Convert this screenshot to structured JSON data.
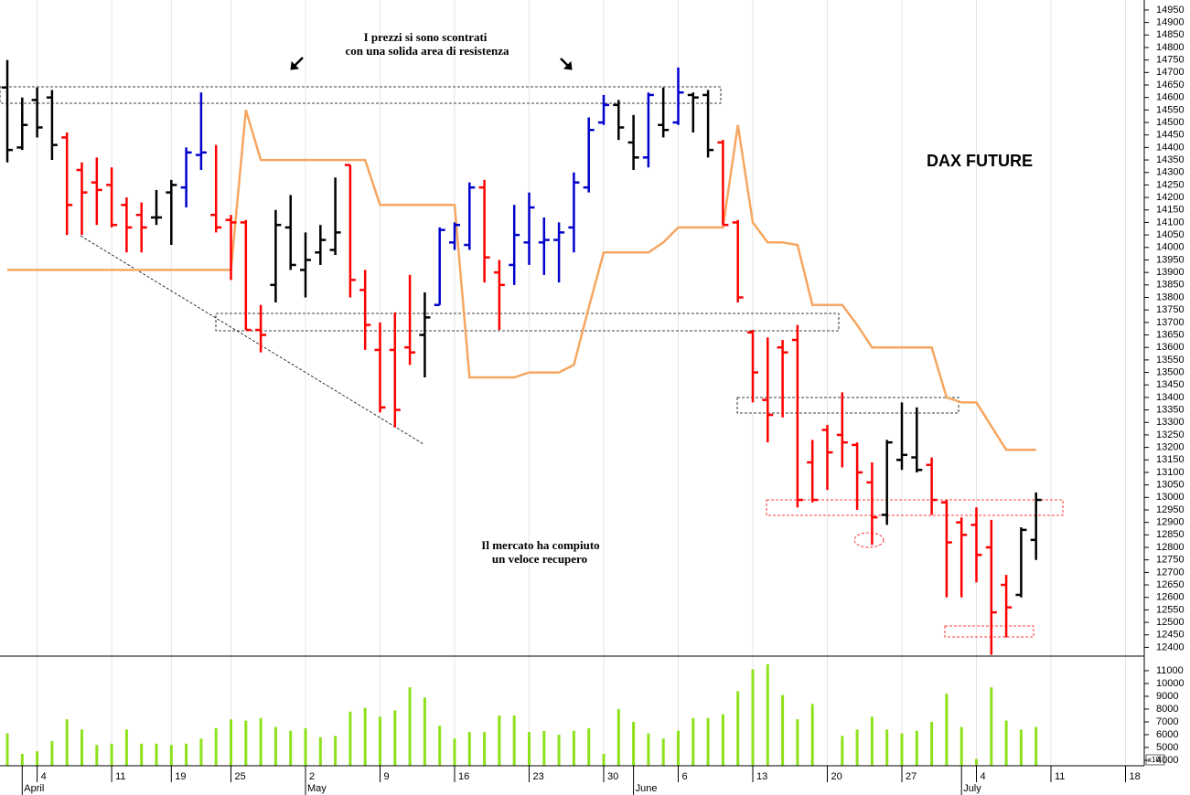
{
  "chart_data": {
    "type": "ohlc",
    "title": "DAX FUTURE",
    "annotations": [
      [
        "I prezzi si sono scontrati",
        "con una solida area di resistenza"
      ],
      [
        "Il mercato ha compiuto",
        "un veloce recupero"
      ]
    ],
    "categories": [
      null,
      null,
      "4",
      null,
      null,
      null,
      null,
      "11",
      null,
      null,
      null,
      "19",
      null,
      null,
      null,
      "25",
      null,
      null,
      null,
      null,
      "2",
      null,
      null,
      null,
      null,
      "9",
      null,
      null,
      null,
      null,
      "16",
      null,
      null,
      null,
      null,
      "23",
      null,
      null,
      null,
      null,
      "30",
      null,
      null,
      null,
      null,
      "6",
      null,
      null,
      null,
      null,
      "13",
      null,
      null,
      null,
      null,
      "20",
      null,
      null,
      null,
      null,
      "27",
      null,
      null,
      null,
      null,
      "4",
      null,
      null,
      null,
      null,
      "11",
      null,
      null,
      null,
      null,
      "18"
    ],
    "months": [
      null,
      "April",
      null,
      null,
      null,
      null,
      null,
      null,
      null,
      null,
      null,
      null,
      null,
      null,
      null,
      null,
      null,
      null,
      null,
      null,
      "May",
      null,
      null,
      null,
      null,
      null,
      null,
      null,
      null,
      null,
      null,
      null,
      null,
      null,
      null,
      null,
      null,
      null,
      null,
      null,
      null,
      null,
      "June",
      null,
      null,
      null,
      null,
      null,
      null,
      null,
      null,
      null,
      null,
      null,
      null,
      null,
      null,
      null,
      null,
      null,
      null,
      null,
      null,
      null,
      "July",
      null,
      null,
      null,
      null,
      null,
      null,
      null,
      null,
      null,
      null,
      null
    ],
    "open": [
      14640,
      14400,
      14590,
      14600,
      14440,
      14310,
      14260,
      14250,
      14170,
      14130,
      14120,
      14220,
      14240,
      14370,
      14130,
      14110,
      14100,
      13670,
      13850,
      14080,
      13910,
      13980,
      13990,
      14330,
      13830,
      13590,
      13590,
      13600,
      13650,
      13770,
      14020,
      14010,
      14240,
      13900,
      13930,
      14020,
      14020,
      14030,
      14080,
      14240,
      14500,
      14570,
      14420,
      14360,
      14490,
      14500,
      14610,
      14610,
      14420,
      14100,
      13660,
      13390,
      13600,
      13630,
      13140,
      13270,
      13250,
      13210,
      13060,
      12930,
      13150,
      13160,
      13130,
      12980,
      12900,
      12890,
      12800,
      12650,
      12610,
      12830,
      null,
      null,
      null,
      null,
      null,
      null
    ],
    "high": [
      14750,
      14600,
      14640,
      14630,
      14460,
      14340,
      14360,
      14320,
      14200,
      14180,
      14230,
      14270,
      14400,
      14620,
      14410,
      14130,
      14110,
      13770,
      14150,
      14210,
      14060,
      14090,
      14280,
      14330,
      13910,
      13700,
      13740,
      13890,
      13820,
      14080,
      14100,
      14260,
      14270,
      13950,
      14170,
      14220,
      14120,
      14100,
      14300,
      14520,
      14610,
      14590,
      14530,
      14620,
      14640,
      14720,
      14620,
      14630,
      14430,
      14110,
      13670,
      13640,
      13630,
      13690,
      13230,
      13290,
      13420,
      13220,
      13140,
      13230,
      13380,
      13360,
      13160,
      12990,
      12920,
      12960,
      12910,
      12690,
      12880,
      13020,
      null,
      null,
      null,
      null,
      null,
      null
    ],
    "low": [
      14340,
      14390,
      14440,
      14350,
      14050,
      14050,
      14090,
      14080,
      13980,
      13980,
      14090,
      14010,
      14160,
      14310,
      14060,
      13870,
      13670,
      13580,
      13780,
      13910,
      13800,
      13930,
      13970,
      13800,
      13590,
      13340,
      13280,
      13530,
      13480,
      13770,
      13990,
      13990,
      13860,
      13670,
      13850,
      13930,
      13890,
      13860,
      13980,
      14220,
      14490,
      14430,
      14310,
      14320,
      14440,
      14490,
      14460,
      14360,
      14090,
      13780,
      13380,
      13220,
      13320,
      12960,
      12980,
      13030,
      13120,
      12950,
      12810,
      12890,
      13110,
      13100,
      12930,
      12600,
      12600,
      12660,
      12370,
      12440,
      12600,
      12750,
      null,
      null,
      null,
      null,
      null,
      null
    ],
    "close": [
      14390,
      14490,
      14480,
      14410,
      14170,
      14220,
      14230,
      14090,
      14080,
      14080,
      14120,
      14250,
      14380,
      14380,
      14080,
      14100,
      13670,
      13650,
      14090,
      13930,
      13950,
      14030,
      14060,
      13870,
      13690,
      13360,
      13350,
      13580,
      13720,
      14070,
      14090,
      14240,
      13960,
      13850,
      14050,
      14160,
      14030,
      14060,
      14260,
      14470,
      14570,
      14480,
      14360,
      14610,
      14470,
      14620,
      14600,
      14390,
      14090,
      13800,
      13500,
      13330,
      13580,
      12990,
      12990,
      13180,
      13220,
      13100,
      12920,
      13220,
      13170,
      13110,
      12990,
      12820,
      12850,
      12770,
      12540,
      12560,
      12870,
      12990,
      null,
      null,
      null,
      null,
      null,
      null
    ],
    "bar_colors": [
      "#000000",
      "#000000",
      "#000000",
      "#000000",
      "#ff0000",
      "#ff0000",
      "#ff0000",
      "#ff0000",
      "#ff0000",
      "#ff0000",
      "#000000",
      "#000000",
      "#0000cc",
      "#0000cc",
      "#ff0000",
      "#ff0000",
      "#ff0000",
      "#ff0000",
      "#000000",
      "#000000",
      "#000000",
      "#000000",
      "#000000",
      "#ff0000",
      "#ff0000",
      "#ff0000",
      "#ff0000",
      "#ff0000",
      "#000000",
      "#0000cc",
      "#0000cc",
      "#0000cc",
      "#ff0000",
      "#ff0000",
      "#0000cc",
      "#0000cc",
      "#0000cc",
      "#0000cc",
      "#0000cc",
      "#0000cc",
      "#0000cc",
      "#000000",
      "#000000",
      "#0000cc",
      "#000000",
      "#0000cc",
      "#000000",
      "#000000",
      "#ff0000",
      "#ff0000",
      "#ff0000",
      "#ff0000",
      "#ff0000",
      "#ff0000",
      "#ff0000",
      "#ff0000",
      "#ff0000",
      "#ff0000",
      "#ff0000",
      "#000000",
      "#000000",
      "#000000",
      "#ff0000",
      "#ff0000",
      "#ff0000",
      "#ff0000",
      "#ff0000",
      "#ff0000",
      "#000000",
      "#000000",
      null,
      null,
      null,
      null,
      null,
      null
    ],
    "overlay": {
      "color": "#f6a661",
      "values": [
        13910,
        13910,
        13910,
        13910,
        13910,
        13910,
        13910,
        13910,
        13910,
        13910,
        13910,
        13910,
        13910,
        13910,
        13910,
        13910,
        14550,
        14350,
        14350,
        14350,
        14350,
        14350,
        14350,
        14350,
        14350,
        14170,
        14170,
        14170,
        14170,
        14170,
        14170,
        13480,
        13480,
        13480,
        13480,
        13500,
        13500,
        13500,
        13530,
        13760,
        13980,
        13980,
        13980,
        13980,
        14020,
        14080,
        14080,
        14080,
        14080,
        14490,
        14100,
        14020,
        14020,
        14010,
        13770,
        13770,
        13770,
        13690,
        13600,
        13600,
        13600,
        13600,
        13600,
        13400,
        13380,
        13380,
        13285,
        13190,
        13190,
        13190,
        null,
        null,
        null,
        null,
        null,
        null
      ]
    },
    "ylim": [
      12365,
      14990
    ],
    "yticks": [
      12400,
      12450,
      12500,
      12550,
      12600,
      12650,
      12700,
      12750,
      12800,
      12850,
      12900,
      12950,
      13000,
      13050,
      13100,
      13150,
      13200,
      13250,
      13300,
      13350,
      13400,
      13450,
      13500,
      13550,
      13600,
      13650,
      13700,
      13750,
      13800,
      13850,
      13900,
      13950,
      14000,
      14050,
      14100,
      14150,
      14200,
      14250,
      14300,
      14350,
      14400,
      14450,
      14500,
      14550,
      14600,
      14650,
      14700,
      14750,
      14800,
      14850,
      14900,
      14950
    ],
    "volume": {
      "color": "#8ee21c",
      "scale_label": "x10",
      "ylim": [
        3570,
        12140
      ],
      "yticks": [
        4000,
        5000,
        6000,
        7000,
        8000,
        9000,
        10000,
        11000
      ],
      "values": [
        6100,
        4500,
        4700,
        5500,
        7200,
        6400,
        5200,
        5300,
        6400,
        5300,
        5300,
        5200,
        5300,
        5700,
        6500,
        7200,
        7100,
        7300,
        6600,
        6300,
        6500,
        5800,
        5900,
        7800,
        8100,
        7400,
        7900,
        9700,
        8900,
        6700,
        5700,
        6200,
        6200,
        7500,
        7500,
        6200,
        6300,
        6000,
        6300,
        6500,
        4500,
        8000,
        7000,
        6100,
        5700,
        6300,
        7300,
        7300,
        7600,
        9400,
        11100,
        11500,
        9100,
        7200,
        8400,
        null,
        5900,
        6400,
        7400,
        6400,
        6100,
        6300,
        7000,
        9200,
        6600,
        4100,
        9700,
        7100,
        6400,
        6600,
        null,
        null,
        null,
        null,
        null,
        null
      ]
    }
  }
}
